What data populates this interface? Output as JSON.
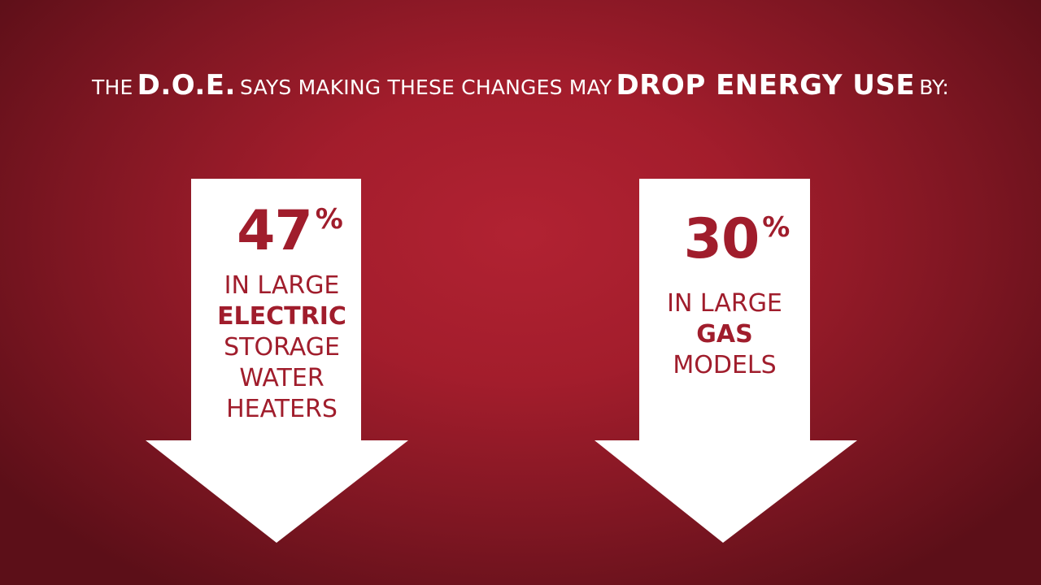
{
  "headline": {
    "part1": "THE",
    "part2": "D.O.E.",
    "part3": "SAYS MAKING THESE CHANGES MAY",
    "part4": "DROP ENERGY USE",
    "part5": "BY:"
  },
  "arrows": [
    {
      "value": "47",
      "unit": "%",
      "line1": "IN LARGE",
      "line2": "ELECTRIC",
      "line3": "STORAGE",
      "line4": "WATER",
      "line5": "HEATERS"
    },
    {
      "value": "30",
      "unit": "%",
      "line1": "IN LARGE",
      "line2": "GAS",
      "line3": "MODELS"
    }
  ],
  "colors": {
    "background": "#a31d2c",
    "arrow_fill": "#ffffff",
    "text_accent": "#a01d2c"
  }
}
